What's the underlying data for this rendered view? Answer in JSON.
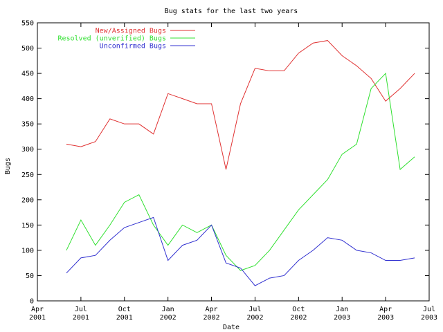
{
  "chart_data": {
    "type": "line",
    "title": "Bug stats for the last two years",
    "x_label": "Date",
    "y_label": "Bugs",
    "x": [
      "2001-06",
      "2001-07",
      "2001-08",
      "2001-09",
      "2001-10",
      "2001-11",
      "2001-12",
      "2002-01",
      "2002-02",
      "2002-03",
      "2002-04",
      "2002-05",
      "2002-06",
      "2002-07",
      "2002-08",
      "2002-09",
      "2002-10",
      "2002-11",
      "2002-12",
      "2003-01",
      "2003-02",
      "2003-03",
      "2003-04",
      "2003-05",
      "2003-06"
    ],
    "series": [
      {
        "name": "New/Assigned Bugs",
        "color": "#e03030",
        "values": [
          310,
          305,
          315,
          360,
          350,
          350,
          330,
          410,
          400,
          390,
          390,
          260,
          390,
          460,
          455,
          455,
          490,
          510,
          515,
          485,
          465,
          440,
          395,
          420,
          450
        ]
      },
      {
        "name": "Resolved (unverified) Bugs",
        "color": "#30e030",
        "values": [
          100,
          160,
          110,
          150,
          195,
          210,
          150,
          110,
          150,
          135,
          150,
          90,
          60,
          70,
          100,
          140,
          180,
          210,
          240,
          290,
          310,
          420,
          450,
          260,
          285
        ]
      },
      {
        "name": "Unconfirmed Bugs",
        "color": "#3030d0",
        "values": [
          55,
          85,
          90,
          120,
          145,
          155,
          165,
          80,
          110,
          120,
          150,
          75,
          65,
          30,
          45,
          50,
          80,
          100,
          125,
          120,
          100,
          95,
          80,
          80,
          85
        ]
      }
    ],
    "xlim": [
      "2001-04",
      "2003-07"
    ],
    "xticks": [
      {
        "value": "2001-04",
        "label": [
          "Apr",
          "2001"
        ]
      },
      {
        "value": "2001-07",
        "label": [
          "Jul",
          "2001"
        ]
      },
      {
        "value": "2001-10",
        "label": [
          "Oct",
          "2001"
        ]
      },
      {
        "value": "2002-01",
        "label": [
          "Jan",
          "2002"
        ]
      },
      {
        "value": "2002-04",
        "label": [
          "Apr",
          "2002"
        ]
      },
      {
        "value": "2002-07",
        "label": [
          "Jul",
          "2002"
        ]
      },
      {
        "value": "2002-10",
        "label": [
          "Oct",
          "2002"
        ]
      },
      {
        "value": "2003-01",
        "label": [
          "Jan",
          "2003"
        ]
      },
      {
        "value": "2003-04",
        "label": [
          "Apr",
          "2003"
        ]
      },
      {
        "value": "2003-07",
        "label": [
          "Jul",
          "2003"
        ]
      }
    ],
    "ylim": [
      0,
      550
    ],
    "yticks": [
      0,
      50,
      100,
      150,
      200,
      250,
      300,
      350,
      400,
      450,
      500,
      550
    ],
    "legend": "top-right"
  }
}
